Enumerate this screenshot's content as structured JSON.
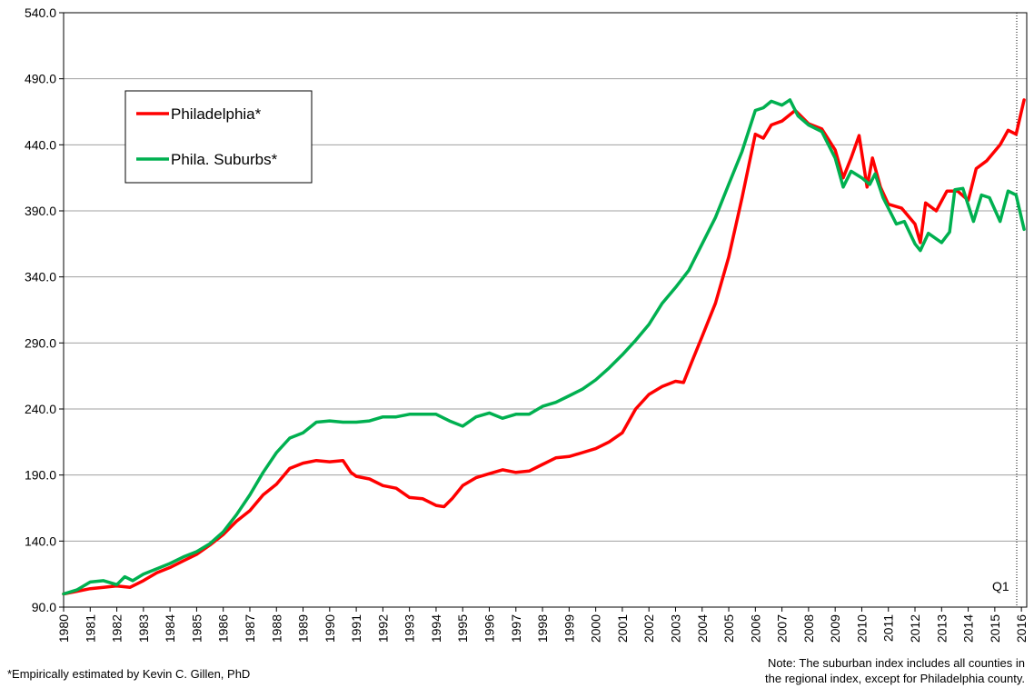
{
  "chart_data": {
    "type": "line",
    "annotations": [
      "Q1"
    ],
    "footnote": "*Empirically estimated by Kevin C. Gillen, PhD",
    "note": [
      "Note: The suburban index includes all counties in",
      "the regional index, except for Philadelphia county."
    ],
    "xlim": [
      1980,
      2016.2
    ],
    "xticks": [
      1980,
      1981,
      1982,
      1983,
      1984,
      1985,
      1986,
      1987,
      1988,
      1989,
      1990,
      1991,
      1992,
      1993,
      1994,
      1995,
      1996,
      1997,
      1998,
      1999,
      2000,
      2001,
      2002,
      2003,
      2004,
      2005,
      2006,
      2007,
      2008,
      2009,
      2010,
      2011,
      2012,
      2013,
      2014,
      2015,
      2016
    ],
    "ylim": [
      90,
      540
    ],
    "yticks": [
      {
        "value": 90,
        "label": "90.0"
      },
      {
        "value": 140,
        "label": "140.0"
      },
      {
        "value": 190,
        "label": "190.0"
      },
      {
        "value": 240,
        "label": "240.0"
      },
      {
        "value": 290,
        "label": "290.0"
      },
      {
        "value": 340,
        "label": "340.0"
      },
      {
        "value": 390,
        "label": "390.0"
      },
      {
        "value": 440,
        "label": "440.0"
      },
      {
        "value": 490,
        "label": "490.0"
      },
      {
        "value": 540,
        "label": "540.0"
      }
    ],
    "grid": true,
    "legend": "upper left",
    "series": [
      {
        "name": "Philadelphia*",
        "color": "#ff0000",
        "x": [
          1980,
          1980.5,
          1981,
          1981.5,
          1982,
          1982.5,
          1983,
          1983.5,
          1984,
          1984.5,
          1985,
          1985.5,
          1986,
          1986.5,
          1987,
          1987.5,
          1988,
          1988.5,
          1989,
          1989.5,
          1990,
          1990.5,
          1990.8,
          1991,
          1991.5,
          1992,
          1992.5,
          1993,
          1993.5,
          1994,
          1994.3,
          1994.6,
          1995,
          1995.5,
          1996,
          1996.5,
          1997,
          1997.5,
          1998,
          1998.5,
          1999,
          1999.5,
          2000,
          2000.5,
          2001,
          2001.5,
          2002,
          2002.5,
          2003,
          2003.3,
          2003.6,
          2004,
          2004.5,
          2005,
          2005.5,
          2006,
          2006.3,
          2006.6,
          2007,
          2007.5,
          2008,
          2008.5,
          2009,
          2009.3,
          2009.6,
          2009.9,
          2010.2,
          2010.4,
          2010.7,
          2011,
          2011.5,
          2012,
          2012.2,
          2012.4,
          2012.8,
          2013.2,
          2013.6,
          2014,
          2014.3,
          2014.7,
          2015.2,
          2015.5,
          2015.8,
          2016.1
        ],
        "values": [
          100,
          102,
          104,
          105,
          106,
          105,
          110,
          116,
          120,
          125,
          130,
          137,
          145,
          155,
          163,
          175,
          183,
          195,
          199,
          201,
          200,
          201,
          192,
          189,
          187,
          182,
          180,
          173,
          172,
          167,
          166,
          172,
          182,
          188,
          191,
          194,
          192,
          193,
          198,
          203,
          204,
          207,
          210,
          215,
          222,
          240,
          251,
          257,
          261,
          260,
          275,
          295,
          320,
          355,
          400,
          448,
          445,
          455,
          458,
          466,
          456,
          452,
          436,
          415,
          430,
          447,
          408,
          430,
          408,
          395,
          392,
          380,
          366,
          396,
          390,
          405,
          405,
          398,
          422,
          428,
          440,
          451,
          448,
          474
        ]
      },
      {
        "name": "Phila. Suburbs*",
        "color": "#00b050",
        "x": [
          1980,
          1980.5,
          1981,
          1981.5,
          1982,
          1982.3,
          1982.6,
          1983,
          1983.5,
          1984,
          1984.5,
          1985,
          1985.5,
          1986,
          1986.5,
          1987,
          1987.5,
          1988,
          1988.5,
          1989,
          1989.5,
          1990,
          1990.5,
          1991,
          1991.5,
          1992,
          1992.5,
          1993,
          1993.5,
          1994,
          1994.5,
          1995,
          1995.5,
          1996,
          1996.5,
          1997,
          1997.5,
          1998,
          1998.5,
          1999,
          1999.5,
          2000,
          2000.5,
          2001,
          2001.5,
          2002,
          2002.5,
          2003,
          2003.5,
          2004,
          2004.5,
          2005,
          2005.5,
          2006,
          2006.3,
          2006.6,
          2007,
          2007.3,
          2007.6,
          2008,
          2008.5,
          2009,
          2009.3,
          2009.6,
          2010,
          2010.3,
          2010.5,
          2010.8,
          2011.3,
          2011.6,
          2012,
          2012.2,
          2012.5,
          2013,
          2013.3,
          2013.5,
          2013.8,
          2014.2,
          2014.5,
          2014.8,
          2015.2,
          2015.5,
          2015.8,
          2016.1
        ],
        "values": [
          100,
          103,
          109,
          110,
          107,
          113,
          110,
          115,
          119,
          123,
          128,
          132,
          138,
          147,
          160,
          175,
          192,
          207,
          218,
          222,
          230,
          231,
          230,
          230,
          231,
          234,
          234,
          236,
          236,
          236,
          231,
          227,
          234,
          237,
          233,
          236,
          236,
          242,
          245,
          250,
          255,
          262,
          271,
          281,
          292,
          304,
          320,
          332,
          345,
          365,
          385,
          410,
          435,
          466,
          468,
          473,
          470,
          474,
          462,
          455,
          450,
          430,
          408,
          420,
          415,
          410,
          418,
          400,
          380,
          382,
          365,
          360,
          373,
          366,
          374,
          406,
          407,
          382,
          402,
          400,
          382,
          405,
          402,
          376
        ]
      }
    ]
  }
}
